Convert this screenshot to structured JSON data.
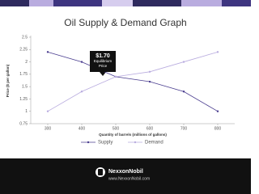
{
  "chart_data": {
    "type": "line",
    "title": "Oil Supply & Demand Graph",
    "x_label": "Quantity of barrels (millions of gallons)",
    "y_label": "Price ($ per gallon)",
    "x": [
      300,
      400,
      500,
      600,
      700,
      800
    ],
    "series": [
      {
        "name": "Supply",
        "color": "#4a3d8f",
        "values": [
          2.2,
          2.0,
          1.7,
          1.6,
          1.4,
          1.0
        ]
      },
      {
        "name": "Demand",
        "color": "#b9acdf",
        "values": [
          1.0,
          1.4,
          1.7,
          1.8,
          2.0,
          2.2
        ]
      }
    ],
    "xlim": [
      250,
      850
    ],
    "xticks": [
      300,
      400,
      500,
      600,
      700,
      800
    ],
    "ylim": [
      0.75,
      2.5
    ],
    "yticks": [
      0.75,
      1,
      1.25,
      1.5,
      1.75,
      2,
      2.25,
      2.5
    ],
    "grid": false,
    "legend": "bottom",
    "annotation": {
      "x": 500,
      "y": 1.7,
      "label": "$1.70",
      "text": "Equilibrium Price"
    }
  },
  "footer": {
    "brand": "NexxonNobil",
    "url": "www.NexxonNobil.com"
  }
}
